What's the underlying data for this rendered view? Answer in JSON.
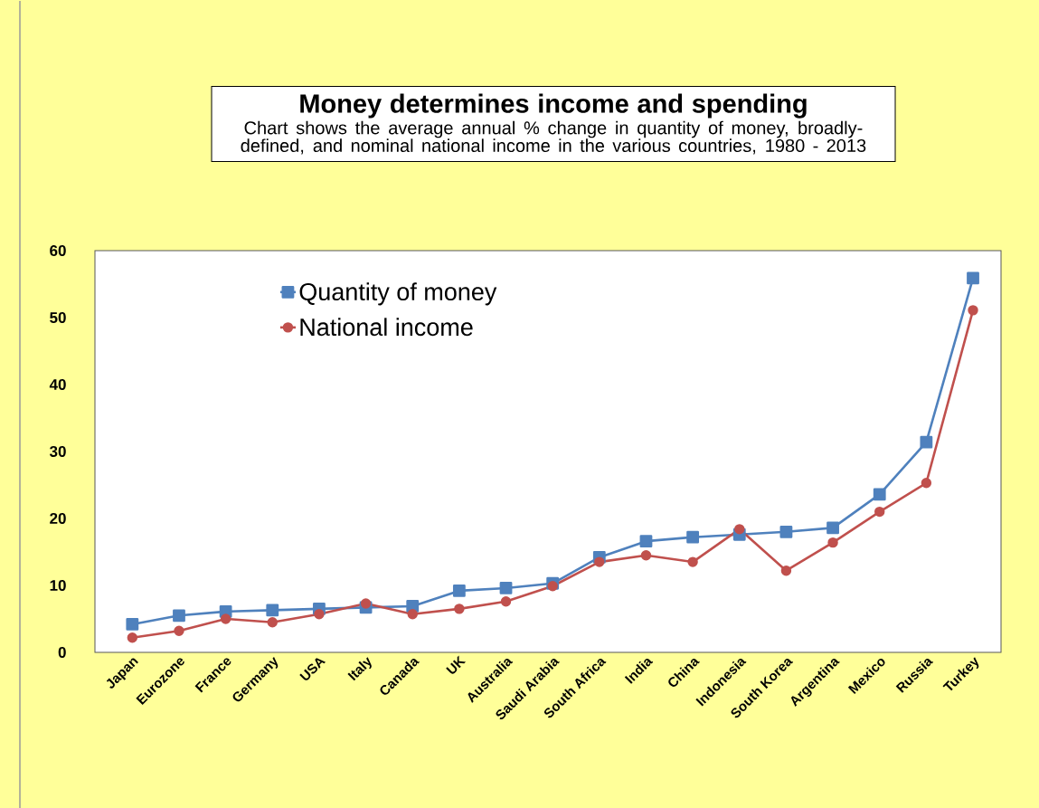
{
  "chart_data": {
    "type": "line",
    "title": "Money determines income and spending",
    "subtitle": "Chart shows the average annual % change in quantity of money, broadly-defined,  and nominal national income in the various countries, 1980 - 2013",
    "categories": [
      "Japan",
      "Eurozone",
      "France",
      "Germany",
      "USA",
      "Italy",
      "Canada",
      "UK",
      "Australia",
      "Saudi Arabia",
      "South Africa",
      "India",
      "China",
      "Indonesia",
      "South Korea",
      "Argentina",
      "Mexico",
      "Russia",
      "Turkey"
    ],
    "series": [
      {
        "name": "Quantity of money",
        "color": "#4f81bd",
        "marker": "square",
        "values": [
          4.2,
          5.5,
          6.1,
          6.3,
          6.5,
          6.7,
          6.9,
          9.2,
          9.6,
          10.3,
          14.2,
          16.6,
          17.2,
          17.6,
          18.0,
          18.6,
          23.6,
          31.4,
          55.9
        ]
      },
      {
        "name": "National income",
        "color": "#c0504d",
        "marker": "circle",
        "values": [
          2.2,
          3.2,
          5.0,
          4.5,
          5.7,
          7.3,
          5.7,
          6.5,
          7.6,
          9.9,
          13.5,
          14.5,
          13.5,
          18.4,
          12.2,
          16.4,
          21.0,
          25.3,
          51.1
        ]
      }
    ],
    "ylim": [
      0,
      60
    ],
    "yticks": [
      0,
      10,
      20,
      30,
      40,
      50,
      60
    ],
    "grid": false,
    "legend": "top left",
    "line_style": "solid"
  }
}
